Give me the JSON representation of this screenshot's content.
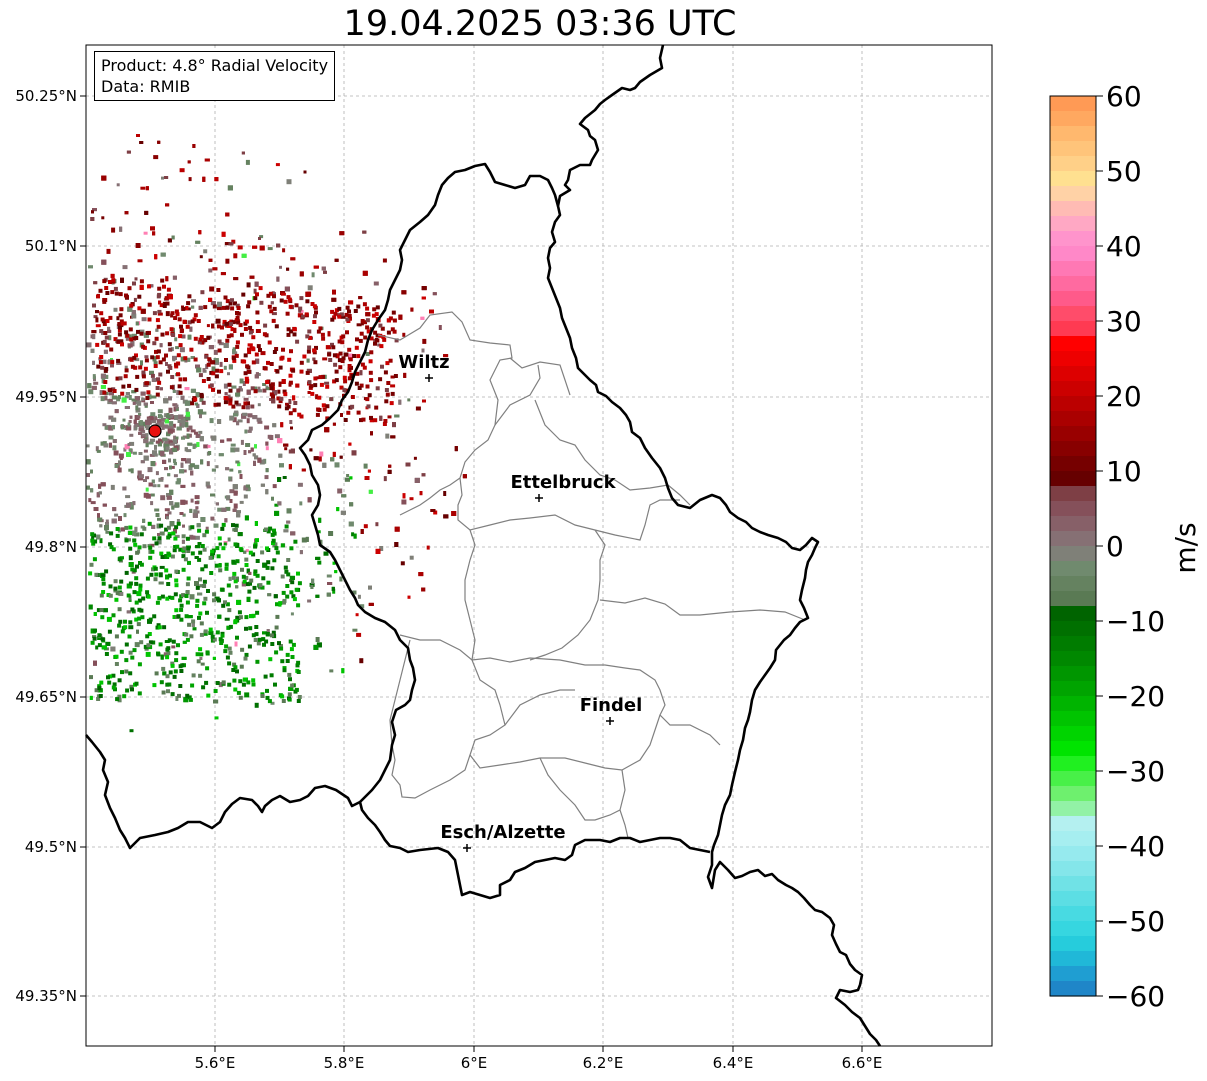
{
  "title": "19.04.2025 03:36 UTC",
  "info_box": {
    "product": "Product: 4.8° Radial Velocity",
    "data": "Data: RMIB"
  },
  "lat_ticks": [
    "50.25°N",
    "50.1°N",
    "49.95°N",
    "49.8°N",
    "49.65°N",
    "49.5°N",
    "49.35°N"
  ],
  "lon_ticks": [
    "5.6°E",
    "5.8°E",
    "6°E",
    "6.2°E",
    "6.4°E",
    "6.6°E"
  ],
  "cities": [
    {
      "name": "Wiltz"
    },
    {
      "name": "Ettelbruck"
    },
    {
      "name": "Findel"
    },
    {
      "name": "Esch/Alzette"
    }
  ],
  "colorbar": {
    "unit": "m/s",
    "tick_labels": [
      "60",
      "50",
      "40",
      "30",
      "20",
      "10",
      "0",
      "−10",
      "−20",
      "−30",
      "−40",
      "−50",
      "−60"
    ],
    "min": -60,
    "max": 60
  },
  "radar_site_color": "#e8100f"
}
